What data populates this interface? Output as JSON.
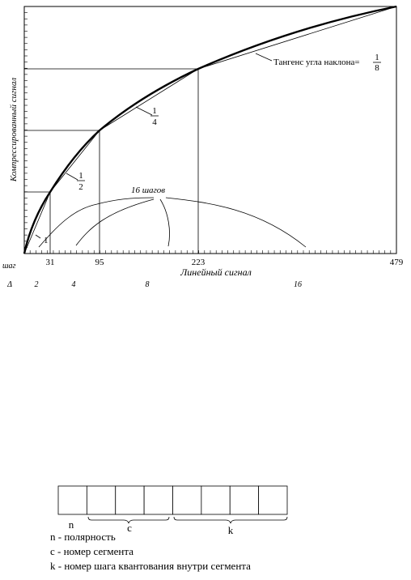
{
  "y_axis_label": "Компрессированный сигнал",
  "x_axis_label": "Линейный сигнал",
  "x_ticks": [
    "31",
    "95",
    "223",
    "479"
  ],
  "tangent": {
    "text": "Тангенс угла наклона=",
    "numerator": "1",
    "denominator": "8"
  },
  "slope_labels": [
    {
      "numerator": "1",
      "denominator": "4"
    },
    {
      "numerator": "1",
      "denominator": "2"
    },
    {
      "text": "1"
    }
  ],
  "steps_label": "16 шагов",
  "step_row": {
    "title": "шаг",
    "items": [
      "Δ",
      "2",
      "4",
      "8",
      "16"
    ]
  },
  "word": {
    "fields": [
      "n",
      "c",
      "k"
    ]
  },
  "legend": [
    "n - полярность",
    "c - номер сегмента",
    "k - номер шага квантования внутри сегмента"
  ]
}
